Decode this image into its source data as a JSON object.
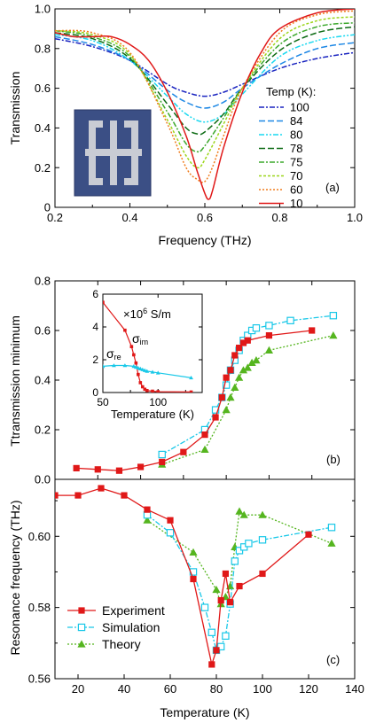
{
  "chart_data": [
    {
      "panel": "a",
      "type": "line",
      "ylabel": "Transmission",
      "xlabel": "Frequency (THz)",
      "panel_label": "(a)",
      "legend_title": "Temp (K):",
      "xlim": [
        0.2,
        1.0
      ],
      "ylim": [
        0,
        1.0
      ],
      "xticks": [
        0.2,
        0.4,
        0.6,
        0.8,
        1.0
      ],
      "xtick_labels": [
        "0.2",
        "0.4",
        "0.6",
        "0.8",
        "1.0"
      ],
      "yticks": [
        0,
        0.2,
        0.4,
        0.6,
        0.8,
        1.0
      ],
      "ytick_labels": [
        "0",
        "0.2",
        "0.4",
        "0.6",
        "0.8",
        "1.0"
      ],
      "inset": "cross-shaped resonator micrograph",
      "series": [
        {
          "name": "100",
          "color": "#1a24c0",
          "dash": "6,2,2,2",
          "x": [
            0.2,
            0.3,
            0.4,
            0.5,
            0.55,
            0.6,
            0.65,
            0.7,
            0.8,
            0.9,
            1.0
          ],
          "y": [
            0.85,
            0.81,
            0.74,
            0.62,
            0.58,
            0.56,
            0.58,
            0.62,
            0.7,
            0.75,
            0.78
          ]
        },
        {
          "name": "84",
          "color": "#1e88e5",
          "dash": "7,3",
          "x": [
            0.2,
            0.3,
            0.4,
            0.5,
            0.55,
            0.6,
            0.65,
            0.7,
            0.8,
            0.9,
            1.0
          ],
          "y": [
            0.86,
            0.82,
            0.74,
            0.59,
            0.53,
            0.5,
            0.53,
            0.6,
            0.72,
            0.8,
            0.83
          ]
        },
        {
          "name": "80",
          "color": "#18d8f0",
          "dash": "6,2,2,2,2,2",
          "x": [
            0.2,
            0.3,
            0.4,
            0.5,
            0.55,
            0.6,
            0.65,
            0.7,
            0.8,
            0.9,
            1.0
          ],
          "y": [
            0.87,
            0.84,
            0.74,
            0.56,
            0.47,
            0.43,
            0.47,
            0.57,
            0.76,
            0.84,
            0.87
          ]
        },
        {
          "name": "78",
          "color": "#0d6b14",
          "dash": "7,3",
          "x": [
            0.2,
            0.3,
            0.4,
            0.5,
            0.55,
            0.58,
            0.6,
            0.65,
            0.7,
            0.8,
            0.9,
            1.0
          ],
          "y": [
            0.88,
            0.85,
            0.75,
            0.52,
            0.4,
            0.37,
            0.38,
            0.47,
            0.6,
            0.79,
            0.88,
            0.91
          ]
        },
        {
          "name": "75",
          "color": "#3ca82c",
          "dash": "6,2,2,2",
          "x": [
            0.2,
            0.3,
            0.4,
            0.5,
            0.55,
            0.58,
            0.6,
            0.65,
            0.7,
            0.8,
            0.9,
            1.0
          ],
          "y": [
            0.89,
            0.86,
            0.76,
            0.48,
            0.32,
            0.28,
            0.31,
            0.45,
            0.6,
            0.82,
            0.91,
            0.93
          ]
        },
        {
          "name": "70",
          "color": "#9cd61a",
          "dash": "3,2",
          "x": [
            0.2,
            0.3,
            0.4,
            0.5,
            0.55,
            0.58,
            0.6,
            0.65,
            0.7,
            0.8,
            0.9,
            1.0
          ],
          "y": [
            0.89,
            0.87,
            0.77,
            0.44,
            0.26,
            0.2,
            0.24,
            0.42,
            0.6,
            0.85,
            0.94,
            0.96
          ]
        },
        {
          "name": "60",
          "color": "#f07c1c",
          "dash": "2,2",
          "x": [
            0.2,
            0.3,
            0.4,
            0.5,
            0.55,
            0.58,
            0.6,
            0.62,
            0.65,
            0.7,
            0.8,
            0.9,
            1.0
          ],
          "y": [
            0.89,
            0.88,
            0.78,
            0.42,
            0.2,
            0.14,
            0.13,
            0.2,
            0.36,
            0.6,
            0.88,
            0.97,
            0.99
          ]
        },
        {
          "name": "10",
          "color": "#e01818",
          "dash": "",
          "x": [
            0.2,
            0.25,
            0.3,
            0.35,
            0.4,
            0.45,
            0.5,
            0.55,
            0.58,
            0.6,
            0.61,
            0.62,
            0.65,
            0.7,
            0.75,
            0.8,
            0.9,
            1.0
          ],
          "y": [
            0.88,
            0.86,
            0.86,
            0.86,
            0.82,
            0.74,
            0.58,
            0.36,
            0.18,
            0.07,
            0.04,
            0.08,
            0.3,
            0.58,
            0.78,
            0.9,
            0.98,
            1.0
          ]
        }
      ]
    },
    {
      "panel": "b",
      "type": "line",
      "ylabel": "Ttransmission minimum",
      "panel_label": "(b)",
      "xlim": [
        0,
        140
      ],
      "ylim": [
        0,
        0.8
      ],
      "yticks": [
        0,
        0.2,
        0.4,
        0.6,
        0.8
      ],
      "ytick_labels": [
        "0.0",
        "0.2",
        "0.4",
        "0.6",
        "0.8"
      ],
      "series": [
        {
          "name": "Experiment",
          "color": "#e01818",
          "marker": "square-filled",
          "dash": "",
          "x": [
            10,
            20,
            30,
            40,
            50,
            60,
            70,
            75,
            78,
            80,
            82,
            84,
            86,
            88,
            90,
            100,
            120
          ],
          "y": [
            0.045,
            0.04,
            0.035,
            0.05,
            0.07,
            0.11,
            0.18,
            0.25,
            0.33,
            0.41,
            0.44,
            0.5,
            0.53,
            0.55,
            0.56,
            0.58,
            0.6
          ]
        },
        {
          "name": "Simulation",
          "color": "#19c8e8",
          "marker": "square-open",
          "dash": "6,2,2,2",
          "x": [
            50,
            70,
            75,
            78,
            80,
            82,
            84,
            86,
            88,
            90,
            92,
            94,
            100,
            110,
            130
          ],
          "y": [
            0.1,
            0.2,
            0.28,
            0.33,
            0.38,
            0.44,
            0.48,
            0.52,
            0.56,
            0.58,
            0.6,
            0.61,
            0.62,
            0.64,
            0.66
          ]
        },
        {
          "name": "Theory",
          "color": "#55b51f",
          "marker": "triangle",
          "dash": "2,2",
          "x": [
            50,
            70,
            80,
            82,
            84,
            86,
            88,
            90,
            92,
            94,
            100,
            130
          ],
          "y": [
            0.06,
            0.12,
            0.28,
            0.33,
            0.37,
            0.41,
            0.44,
            0.45,
            0.47,
            0.48,
            0.52,
            0.58
          ]
        }
      ]
    },
    {
      "panel": "b-inset",
      "type": "line",
      "xlabel": "Temperature (K)",
      "units_label": "×10",
      "units_exp": "6",
      "units_tail": " S/m",
      "xlim": [
        50,
        140
      ],
      "ylim": [
        0,
        6
      ],
      "xticks": [
        50,
        100
      ],
      "xtick_labels": [
        "50",
        "100"
      ],
      "minor_xticks": [
        75,
        125
      ],
      "yticks": [
        0,
        2,
        4,
        6
      ],
      "ytick_labels": [
        "0",
        "2",
        "4",
        "6"
      ],
      "series": [
        {
          "name": "σ_im",
          "label_main": "σ",
          "label_sub": "im",
          "color": "#e01818",
          "x": [
            50,
            70,
            76,
            78,
            80,
            82,
            84,
            86,
            88,
            90,
            95,
            100,
            130
          ],
          "y": [
            5.5,
            3.8,
            2.8,
            2.3,
            1.8,
            1.1,
            0.6,
            0.35,
            0.2,
            0.12,
            0.08,
            0.05,
            0.03
          ]
        },
        {
          "name": "σ_re",
          "label_main": "σ",
          "label_sub": "re",
          "color": "#19c8e8",
          "x": [
            50,
            60,
            70,
            78,
            80,
            82,
            84,
            86,
            88,
            90,
            95,
            100,
            130
          ],
          "y": [
            1.6,
            1.65,
            1.65,
            1.6,
            1.55,
            1.5,
            1.45,
            1.4,
            1.35,
            1.3,
            1.25,
            1.2,
            0.9
          ]
        }
      ]
    },
    {
      "panel": "c",
      "type": "line",
      "ylabel": "Resonance frequency (THz)",
      "xlabel": "Temperature (K)",
      "panel_label": "(c)",
      "xlim": [
        10,
        140
      ],
      "ylim": [
        0.56,
        0.616
      ],
      "xticks": [
        20,
        40,
        60,
        80,
        100,
        120,
        140
      ],
      "xtick_labels": [
        "20",
        "40",
        "60",
        "80",
        "100",
        "120",
        "140"
      ],
      "yticks": [
        0.56,
        0.58,
        0.6
      ],
      "ytick_labels": [
        "0.56",
        "0.58",
        "0.60"
      ],
      "series": [
        {
          "name": "Experiment",
          "color": "#e01818",
          "marker": "square-filled",
          "dash": "",
          "x": [
            10,
            20,
            30,
            40,
            50,
            60,
            70,
            78,
            80,
            82,
            84,
            86,
            90,
            100,
            120
          ],
          "y": [
            0.6115,
            0.6115,
            0.6135,
            0.6115,
            0.6075,
            0.6045,
            0.588,
            0.564,
            0.568,
            0.582,
            0.5895,
            0.5815,
            0.586,
            0.5895,
            0.6005
          ]
        },
        {
          "name": "Simulation",
          "color": "#19c8e8",
          "marker": "square-open",
          "dash": "6,2,2,2",
          "x": [
            50,
            60,
            70,
            75,
            78,
            80,
            82,
            84,
            86,
            88,
            90,
            92,
            94,
            100,
            130
          ],
          "y": [
            0.606,
            0.601,
            0.59,
            0.58,
            0.573,
            0.568,
            0.569,
            0.572,
            0.581,
            0.593,
            0.596,
            0.597,
            0.598,
            0.599,
            0.6025
          ]
        },
        {
          "name": "Theory",
          "color": "#55b51f",
          "marker": "triangle",
          "dash": "2,2",
          "x": [
            50,
            70,
            80,
            82,
            84,
            86,
            88,
            90,
            92,
            100,
            130
          ],
          "y": [
            0.6045,
            0.5955,
            0.585,
            0.581,
            0.583,
            0.586,
            0.597,
            0.607,
            0.606,
            0.606,
            0.598
          ]
        }
      ]
    }
  ]
}
